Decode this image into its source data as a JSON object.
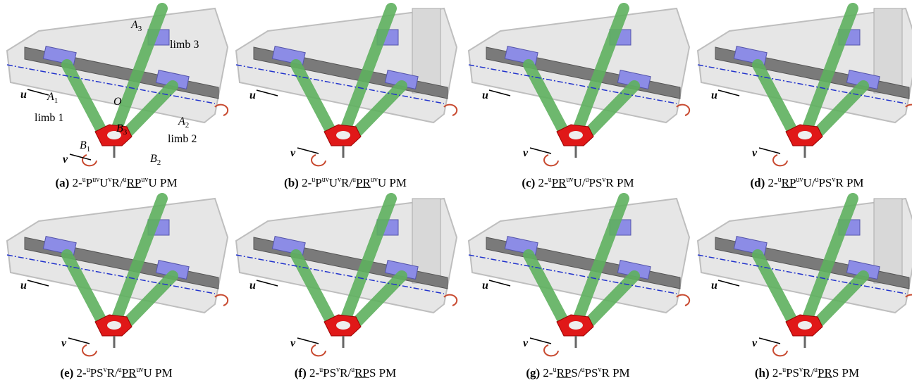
{
  "panels": [
    {
      "label": "(a)",
      "caption": [
        {
          "text": "2-"
        },
        {
          "text": "u",
          "style": "sup"
        },
        {
          "text": "P"
        },
        {
          "text": "uv",
          "style": "sup"
        },
        {
          "text": "U"
        },
        {
          "text": "v",
          "style": "sup"
        },
        {
          "text": "R/"
        },
        {
          "text": "u",
          "style": "sup"
        },
        {
          "text": "RP",
          "style": "underline"
        },
        {
          "text": "uv",
          "style": "sup"
        },
        {
          "text": "U PM"
        }
      ],
      "annotations": [
        {
          "text": "A",
          "sub": "3"
        },
        {
          "text": "limb 3"
        },
        {
          "text": "u"
        },
        {
          "text": "A",
          "sub": "1"
        },
        {
          "text": "O"
        },
        {
          "text": "limb 1"
        },
        {
          "text": "B",
          "sub": "3"
        },
        {
          "text": "A",
          "sub": "2"
        },
        {
          "text": "limb 2"
        },
        {
          "text": "B",
          "sub": "1"
        },
        {
          "text": "v"
        },
        {
          "text": "B",
          "sub": "2"
        }
      ]
    },
    {
      "label": "(b)",
      "caption": [
        {
          "text": "2-"
        },
        {
          "text": "u",
          "style": "sup"
        },
        {
          "text": "P"
        },
        {
          "text": "uv",
          "style": "sup"
        },
        {
          "text": "U"
        },
        {
          "text": "v",
          "style": "sup"
        },
        {
          "text": "R/"
        },
        {
          "text": "u",
          "style": "sup"
        },
        {
          "text": "PR",
          "style": "underline"
        },
        {
          "text": "uv",
          "style": "sup"
        },
        {
          "text": "U PM"
        }
      ],
      "annotations": [
        {
          "text": "u"
        },
        {
          "text": "v"
        }
      ]
    },
    {
      "label": "(c)",
      "caption": [
        {
          "text": "2-"
        },
        {
          "text": "u",
          "style": "sup"
        },
        {
          "text": "PR",
          "style": "underline"
        },
        {
          "text": "uv",
          "style": "sup"
        },
        {
          "text": "U/"
        },
        {
          "text": "u",
          "style": "sup"
        },
        {
          "text": "PS"
        },
        {
          "text": "v",
          "style": "sup"
        },
        {
          "text": "R PM"
        }
      ],
      "annotations": [
        {
          "text": "u"
        },
        {
          "text": "v"
        }
      ]
    },
    {
      "label": "(d)",
      "caption": [
        {
          "text": "2-"
        },
        {
          "text": "u",
          "style": "sup"
        },
        {
          "text": "RP",
          "style": "underline"
        },
        {
          "text": "uv",
          "style": "sup"
        },
        {
          "text": "U/"
        },
        {
          "text": "u",
          "style": "sup"
        },
        {
          "text": "PS"
        },
        {
          "text": "v",
          "style": "sup"
        },
        {
          "text": "R PM"
        }
      ],
      "annotations": [
        {
          "text": "u"
        },
        {
          "text": "v"
        }
      ]
    },
    {
      "label": "(e)",
      "caption": [
        {
          "text": "2-"
        },
        {
          "text": "u",
          "style": "sup"
        },
        {
          "text": "PS"
        },
        {
          "text": "v",
          "style": "sup"
        },
        {
          "text": "R/"
        },
        {
          "text": "u",
          "style": "sup"
        },
        {
          "text": "PR",
          "style": "underline"
        },
        {
          "text": "uv",
          "style": "sup"
        },
        {
          "text": "U PM"
        }
      ],
      "annotations": [
        {
          "text": "u"
        },
        {
          "text": "v"
        }
      ]
    },
    {
      "label": "(f)",
      "caption": [
        {
          "text": "2-"
        },
        {
          "text": "u",
          "style": "sup"
        },
        {
          "text": "PS"
        },
        {
          "text": "v",
          "style": "sup"
        },
        {
          "text": "R/"
        },
        {
          "text": "u",
          "style": "sup"
        },
        {
          "text": "RP",
          "style": "underline"
        },
        {
          "text": "S PM"
        }
      ],
      "annotations": [
        {
          "text": "u"
        },
        {
          "text": "v"
        }
      ]
    },
    {
      "label": "(g)",
      "caption": [
        {
          "text": "2-"
        },
        {
          "text": "u",
          "style": "sup"
        },
        {
          "text": "RP",
          "style": "underline"
        },
        {
          "text": "S/"
        },
        {
          "text": "u",
          "style": "sup"
        },
        {
          "text": "PS"
        },
        {
          "text": "v",
          "style": "sup"
        },
        {
          "text": "R PM"
        }
      ],
      "annotations": [
        {
          "text": "u"
        },
        {
          "text": "v"
        }
      ]
    },
    {
      "label": "(h)",
      "caption": [
        {
          "text": "2-"
        },
        {
          "text": "u",
          "style": "sup"
        },
        {
          "text": "PS"
        },
        {
          "text": "v",
          "style": "sup"
        },
        {
          "text": "R/"
        },
        {
          "text": "u",
          "style": "sup"
        },
        {
          "text": "PR",
          "style": "underline"
        },
        {
          "text": "S PM"
        }
      ],
      "annotations": [
        {
          "text": "u"
        },
        {
          "text": "v"
        }
      ]
    }
  ]
}
